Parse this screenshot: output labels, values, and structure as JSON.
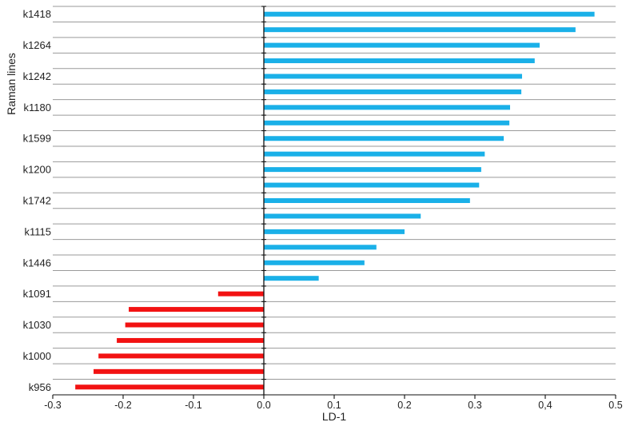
{
  "chart_data": {
    "type": "bar",
    "orientation": "horizontal",
    "title": "",
    "xlabel": "LD-1",
    "ylabel": "Raman lines",
    "xlim": [
      -0.3,
      0.5
    ],
    "x_ticks": [
      "-0.3",
      "-0.2",
      "-0.1",
      "0.0",
      "0.1",
      "0.2",
      "0.3",
      "0,4",
      "0.5"
    ],
    "y_tick_labels": [
      {
        "row": 0,
        "label": "k1418"
      },
      {
        "row": 2,
        "label": "k1264"
      },
      {
        "row": 4,
        "label": "k1242"
      },
      {
        "row": 6,
        "label": "k1180"
      },
      {
        "row": 8,
        "label": "k1599"
      },
      {
        "row": 10,
        "label": "k1200"
      },
      {
        "row": 12,
        "label": "k1742"
      },
      {
        "row": 14,
        "label": "k1115"
      },
      {
        "row": 16,
        "label": "k1446"
      },
      {
        "row": 18,
        "label": "k1091"
      },
      {
        "row": 20,
        "label": "k1030"
      },
      {
        "row": 22,
        "label": "k1000"
      },
      {
        "row": 24,
        "label": "k956"
      }
    ],
    "values": [
      0.47,
      0.443,
      0.392,
      0.385,
      0.367,
      0.366,
      0.35,
      0.349,
      0.341,
      0.314,
      0.309,
      0.306,
      0.293,
      0.223,
      0.2,
      0.16,
      0.143,
      0.078,
      -0.065,
      -0.192,
      -0.197,
      -0.209,
      -0.235,
      -0.242,
      -0.268
    ],
    "positive_color": "#1ab0e8",
    "negative_color": "#f21212",
    "gridlines": "horizontal",
    "legend": "none"
  }
}
